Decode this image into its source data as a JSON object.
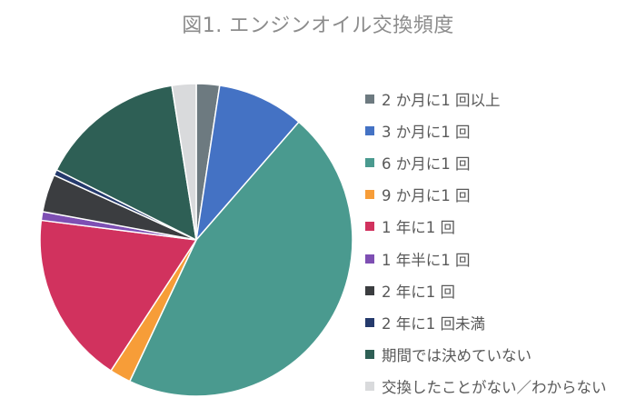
{
  "chart_data": {
    "type": "pie",
    "title": "図1. エンジンオイル交換頻度",
    "labels": [
      "2 か月に1 回以上",
      "3 か月に1 回",
      "6 か月に1 回",
      "9 か月に1 回",
      "1 年に1 回",
      "1 年半に1 回",
      "2 年に1 回",
      "2 年に1 回未満",
      "期間では決めていない",
      "交換したことがない／わからない"
    ],
    "values": [
      2.4,
      9.0,
      45.6,
      2.2,
      17.8,
      0.9,
      3.9,
      0.6,
      15.1,
      2.5
    ],
    "colors": [
      "#6d7a80",
      "#4472c4",
      "#4a9a8f",
      "#f79d38",
      "#d1325e",
      "#7e4fb3",
      "#3b3d40",
      "#253a6c",
      "#2e5f55",
      "#d9dadc"
    ],
    "start_angle_deg": 0,
    "direction": "clockwise",
    "legend_position": "right"
  }
}
